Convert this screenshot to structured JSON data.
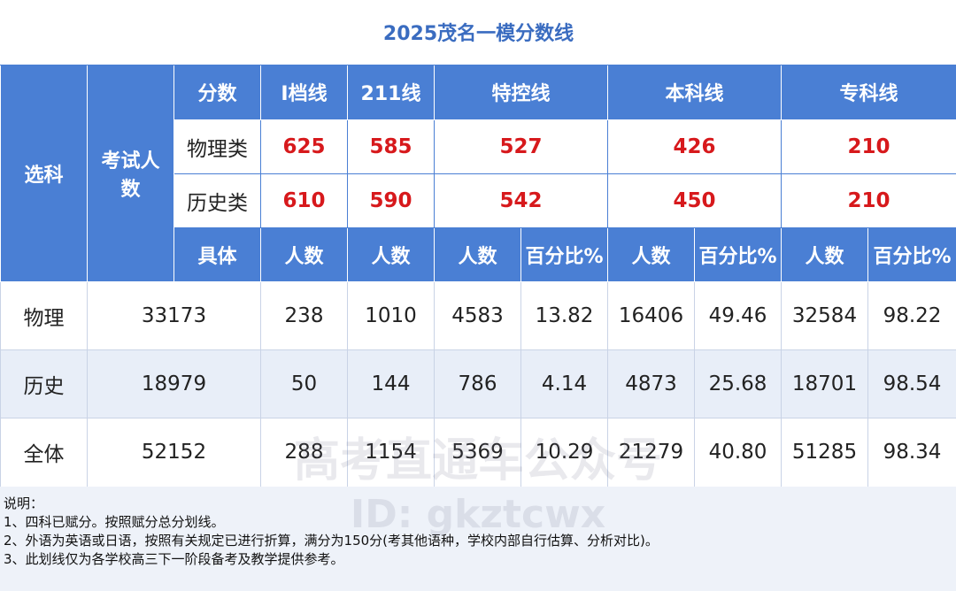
{
  "title": "2025茂名一模分数线",
  "header": {
    "subject": "选科",
    "candidates": "考试人数",
    "score": "分数",
    "lines": [
      "I档线",
      "211线",
      "特控线",
      "本科线",
      "专科线"
    ]
  },
  "score_rows": [
    {
      "label": "物理类",
      "values": [
        "625",
        "585",
        "527",
        "426",
        "210"
      ]
    },
    {
      "label": "历史类",
      "values": [
        "610",
        "590",
        "542",
        "450",
        "210"
      ]
    }
  ],
  "detail_header": [
    "具体",
    "人数",
    "人数",
    "人数",
    "百分比%",
    "人数",
    "百分比%",
    "人数",
    "百分比%"
  ],
  "rows": [
    [
      "物理",
      "33173",
      "238",
      "1010",
      "4583",
      "13.82",
      "16406",
      "49.46",
      "32584",
      "98.22"
    ],
    [
      "历史",
      "18979",
      "50",
      "144",
      "786",
      "4.14",
      "4873",
      "25.68",
      "18701",
      "98.54"
    ],
    [
      "全体",
      "52152",
      "288",
      "1154",
      "5369",
      "10.29",
      "21279",
      "40.80",
      "51285",
      "98.34"
    ]
  ],
  "notes": {
    "title": "说明：",
    "items": [
      "1、四科已赋分。按照赋分总分划线。",
      "2、外语为英语或日语，按照有关规定已进行折算，满分为150分(考其他语种，学校内部自行估算、分析对比)。",
      "3、此划线仅为各学校高三下一阶段备考及教学提供参考。"
    ]
  },
  "watermark": [
    "高考直通车公众号",
    "ID: gkztcwx"
  ]
}
